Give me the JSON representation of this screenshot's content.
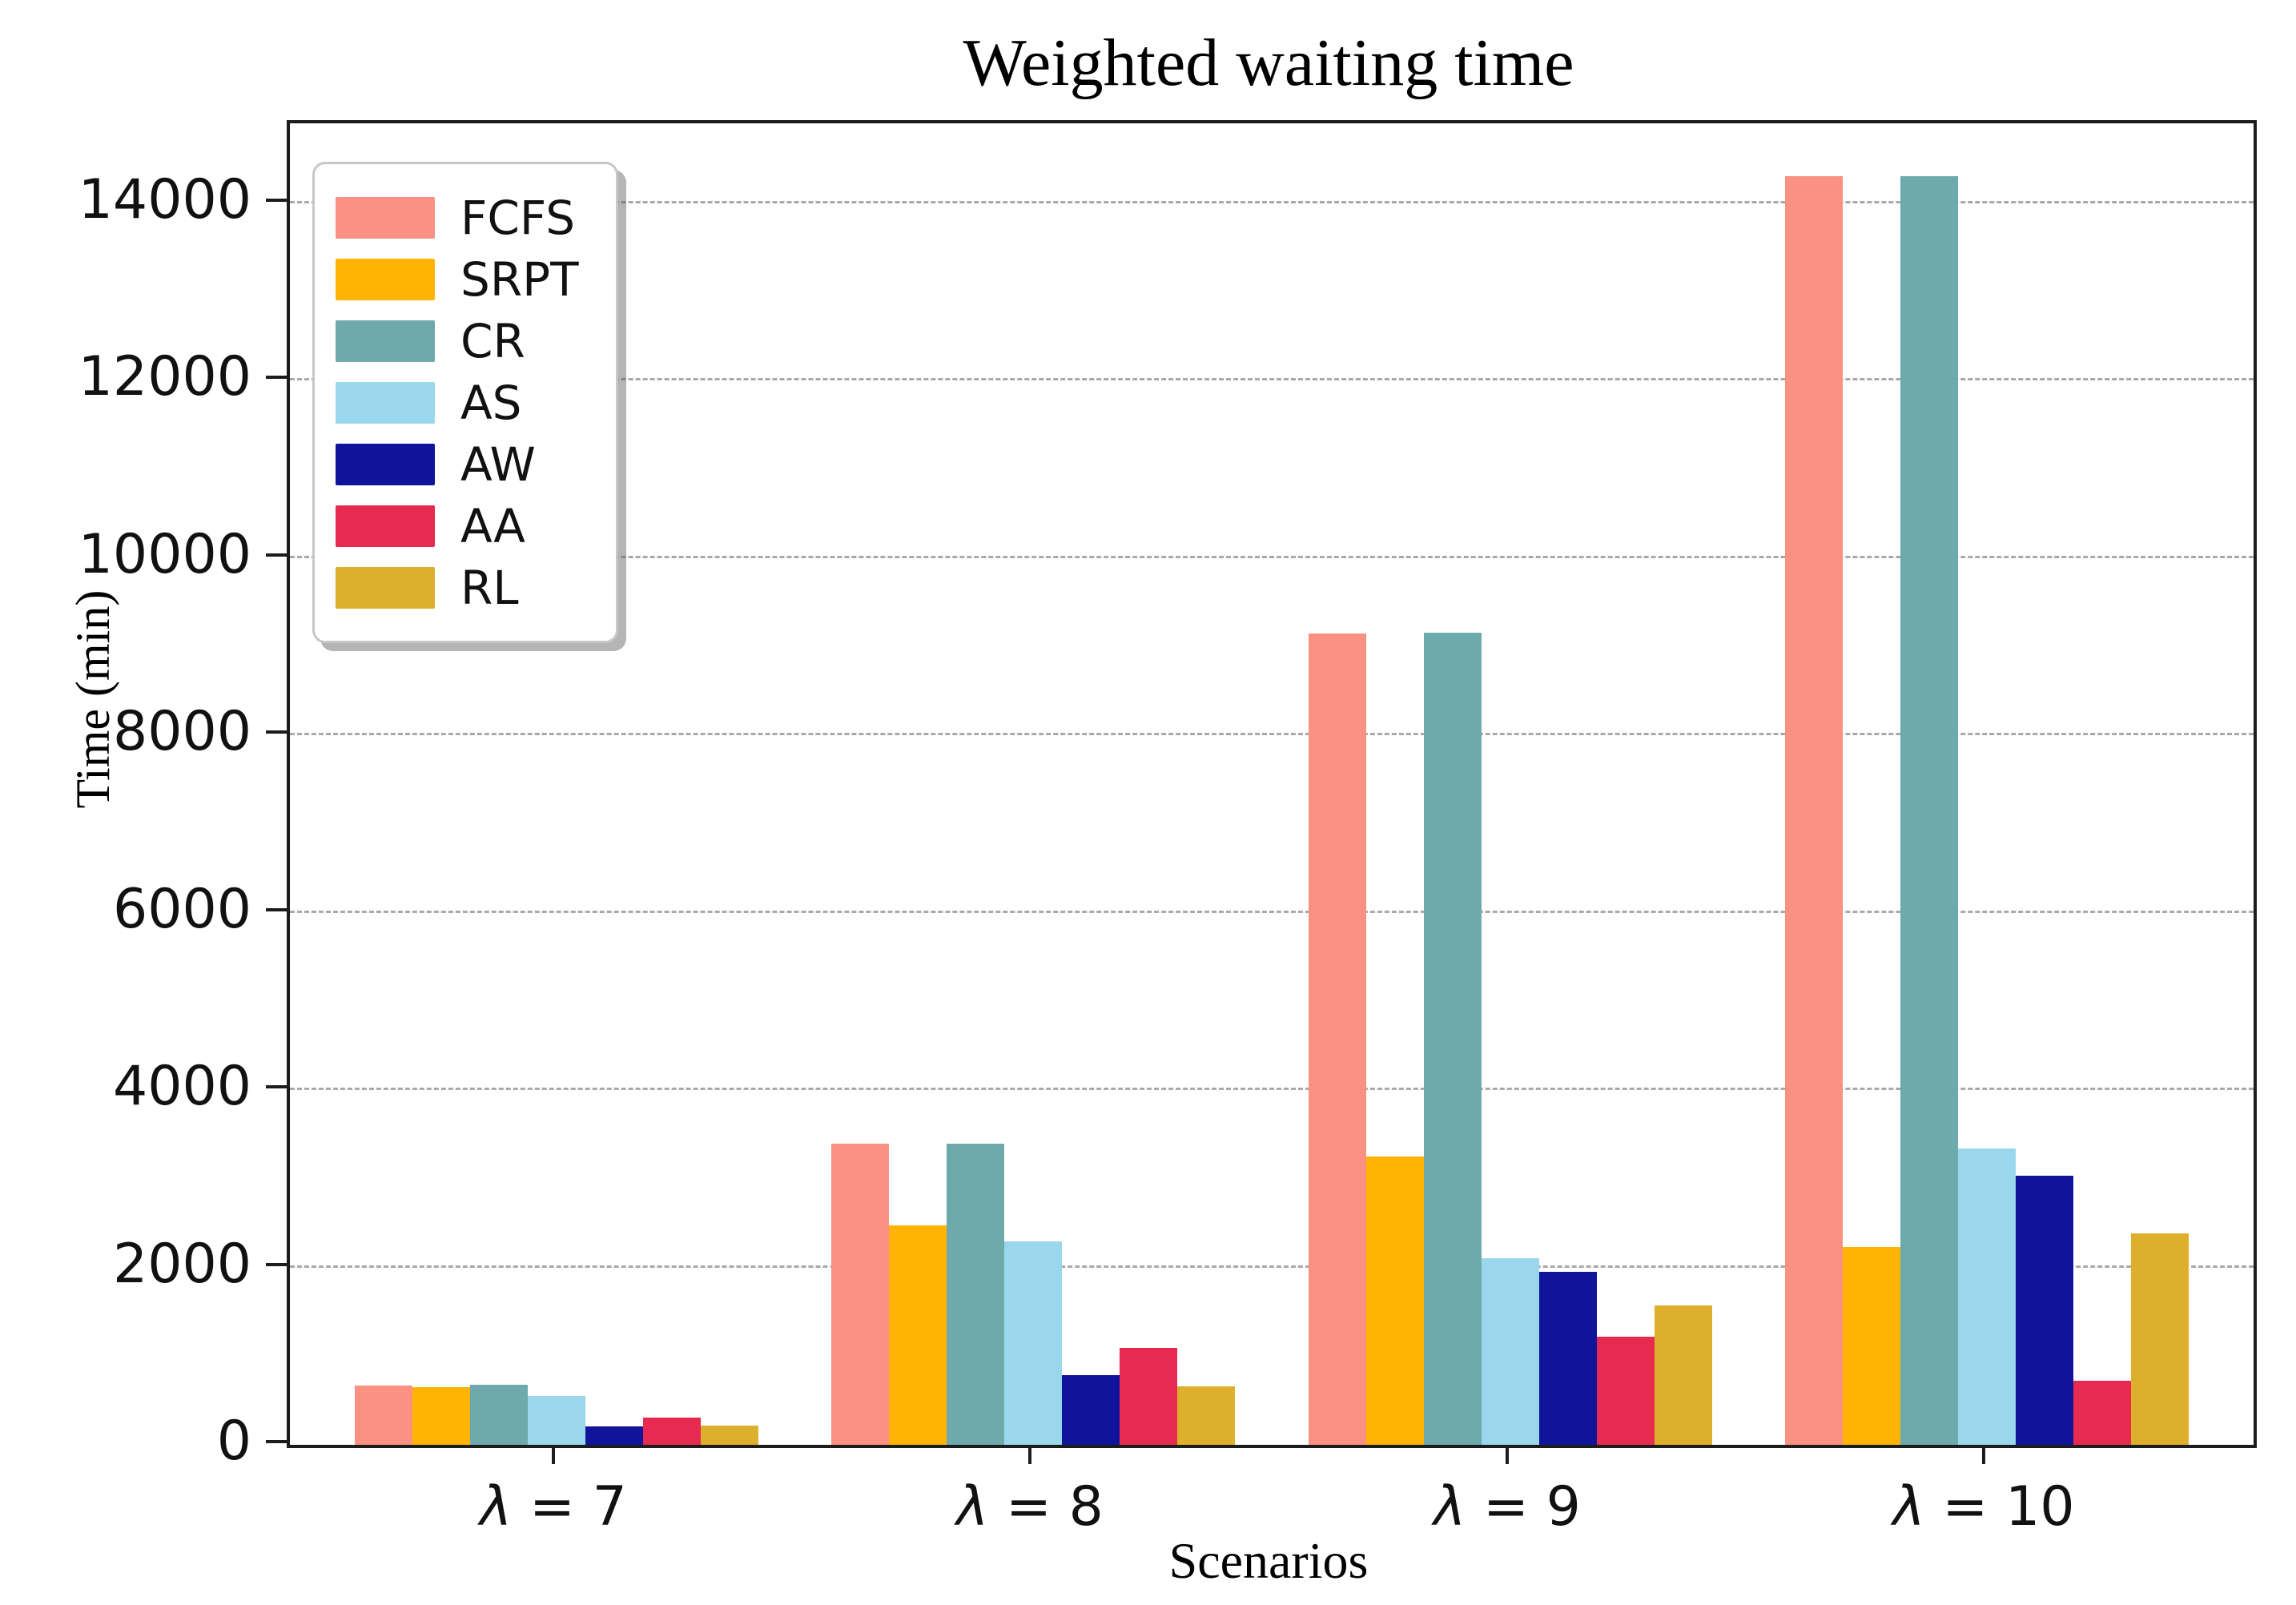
{
  "chart_data": {
    "type": "bar",
    "title": "Weighted waiting time",
    "xlabel": "Scenarios",
    "ylabel": "Time (min)",
    "categories": [
      "λ = 7",
      "λ = 8",
      "λ = 9",
      "λ = 10"
    ],
    "series": [
      {
        "name": "FCFS",
        "color": "#FA9183",
        "values": [
          670,
          3400,
          9150,
          14300
        ]
      },
      {
        "name": "SRPT",
        "color": "#FFB303",
        "values": [
          650,
          2470,
          3250,
          2230
        ]
      },
      {
        "name": "CR",
        "color": "#6EA9AC",
        "values": [
          675,
          3400,
          9160,
          14300
        ]
      },
      {
        "name": "AS",
        "color": "#9BD7EC",
        "values": [
          555,
          2290,
          2100,
          3340
        ]
      },
      {
        "name": "AW",
        "color": "#0F149B",
        "values": [
          210,
          790,
          1950,
          3030
        ]
      },
      {
        "name": "AA",
        "color": "#E72A50",
        "values": [
          305,
          1090,
          1220,
          720
        ]
      },
      {
        "name": "RL",
        "color": "#DDAF2C",
        "values": [
          220,
          660,
          1570,
          2380
        ]
      }
    ],
    "ylim": [
      0,
      14900
    ],
    "yticks": [
      0,
      2000,
      4000,
      6000,
      8000,
      10000,
      12000,
      14000
    ],
    "grid": "horizontal dashed",
    "legend_position": "upper left",
    "axis_color": "#1c1c1c",
    "gridline_color": "#a9a9a9"
  }
}
